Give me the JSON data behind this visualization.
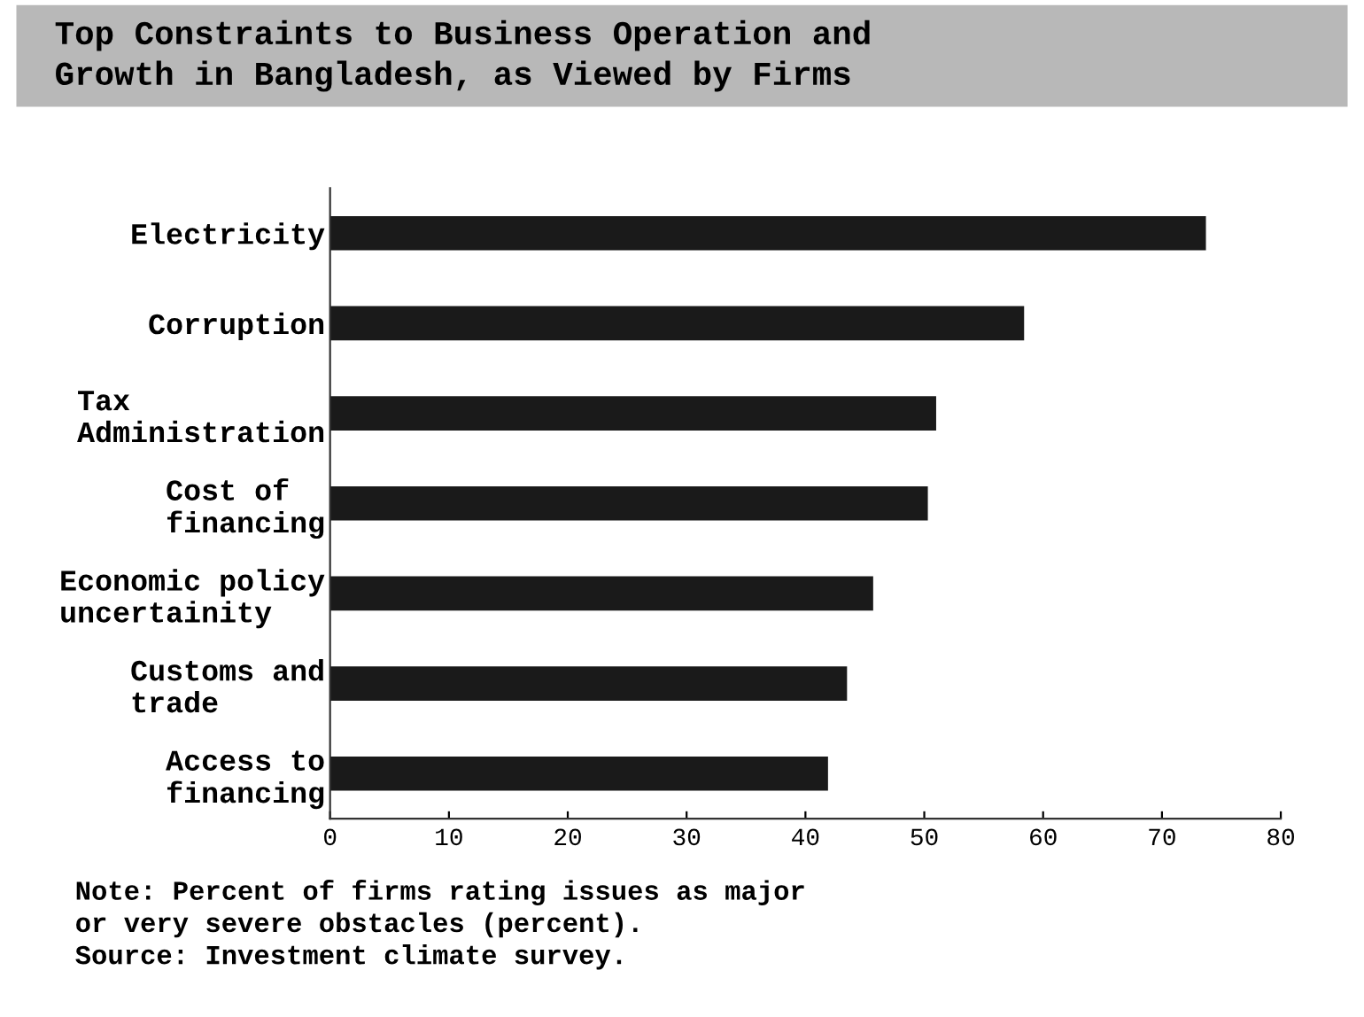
{
  "chart_data": {
    "type": "bar",
    "orientation": "horizontal",
    "title": "Top Constraints to Business Operation and\nGrowth in Bangladesh, as Viewed by Firms",
    "categories": [
      "Electricity",
      "Corruption",
      "Tax\nAdministration",
      "Cost of\nfinancing",
      "Economic policy\nuncertainity",
      "Customs and\ntrade",
      "Access to\nfinancing"
    ],
    "values": [
      73.7,
      58.4,
      51.0,
      50.3,
      45.7,
      43.5,
      41.9
    ],
    "color": "#1a1a1a",
    "xlim": [
      0,
      80
    ],
    "xticks": [
      0,
      10,
      20,
      30,
      40,
      50,
      60,
      70,
      80
    ],
    "grid": false,
    "annotations": [
      "Note: Percent of firms rating issues as major\nor very severe obstacles (percent).\nSource: Investment climate survey."
    ]
  }
}
